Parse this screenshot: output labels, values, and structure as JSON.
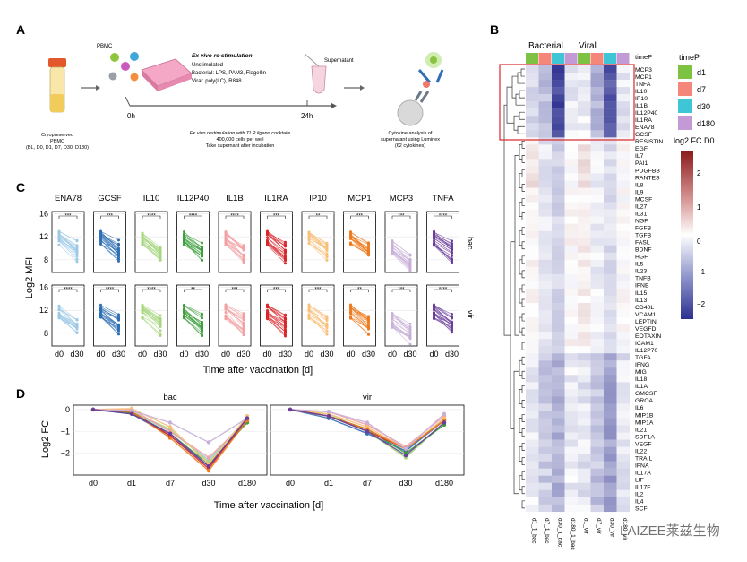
{
  "panels": {
    "A": {
      "label": "A",
      "pbmc": "PBMC",
      "exvivo_title": "Ex vivo re-stimulation",
      "unstimulated": "Unstimulated",
      "bacterial": "Bacterial: LPS, PAM3, Flagellin",
      "viral": "Viral: poly(I:C), R848",
      "supernatant": "Supernatant",
      "t0": "0h",
      "t24": "24h",
      "cryo": [
        "Cryopreserved",
        "PBMC",
        "(BL, D0, D1, D7, D30, D180)"
      ],
      "restim": [
        "Ex vivo restimulation with TLR ligand cocktails",
        "400,000 cells per well",
        "Take supernant after incubation"
      ],
      "cytokine": [
        "Cytokine analysis of",
        "supernatant using Luminex",
        "(62 cytokines)"
      ]
    },
    "B": {
      "label": "B",
      "group_bacterial": "Bacterial",
      "group_viral": "Viral",
      "timep_row": "timeP",
      "legend_title": "timeP",
      "legend_items": [
        {
          "name": "d1",
          "color": "#7dc242"
        },
        {
          "name": "d7",
          "color": "#f4877a"
        },
        {
          "name": "d30",
          "color": "#3ec6d6"
        },
        {
          "name": "d180",
          "color": "#c39ad6"
        }
      ],
      "scale_title": "log2 FC D0",
      "scale_ticks": [
        "2",
        "1",
        "0",
        "−1",
        "−2"
      ],
      "cytokines": [
        "MCP3",
        "MCP1",
        "TNFA",
        "IL10",
        "IP10",
        "IL1B",
        "IL12P40",
        "IL1RA",
        "ENA78",
        "GCSF",
        "RESISTIN",
        "EGF",
        "IL7",
        "PAI1",
        "PDGFBB",
        "RANTES",
        "IL8",
        "IL9",
        "MCSF",
        "IL27",
        "IL31",
        "NGF",
        "FGFB",
        "TGFB",
        "FASL",
        "BDNF",
        "HGF",
        "IL5",
        "IL23",
        "TNFB",
        "IFNB",
        "IL15",
        "IL13",
        "CD40L",
        "VCAM1",
        "LEPTIN",
        "VEGFD",
        "EOTAXIN",
        "ICAM1",
        "IL12P70",
        "TGFA",
        "IFNG",
        "MIG",
        "IL18",
        "IL1A",
        "GMCSF",
        "GROA",
        "IL6",
        "MIP1B",
        "MIP1A",
        "IL21",
        "SDF1A",
        "VEGF",
        "IL22",
        "TRAIL",
        "IFNA",
        "IL17A",
        "LIF",
        "IL17F",
        "IL2",
        "IL4",
        "SCF"
      ],
      "columns": [
        "d1_1_bac",
        "d7_1_bac",
        "d30_1_bac",
        "d180_1_bac",
        "d1_vir",
        "d7_vir",
        "d30_vir",
        "d180_vir"
      ]
    },
    "C": {
      "label": "C",
      "ylabel": "Log2 MFI",
      "xlabel": "Time after vaccination [d]",
      "row_bac": "bac",
      "row_vir": "vir",
      "xticks": [
        "d0",
        "d30"
      ],
      "yticks": [
        "16",
        "12",
        "8"
      ],
      "facets": [
        {
          "name": "ENA78",
          "color": "#9dc9e6",
          "sig_bac": "***",
          "sig_vir": "****"
        },
        {
          "name": "GCSF",
          "color": "#2f6fb4",
          "sig_bac": "***",
          "sig_vir": "****"
        },
        {
          "name": "IL10",
          "color": "#a6d67d",
          "sig_bac": "****",
          "sig_vir": "****"
        },
        {
          "name": "IL12P40",
          "color": "#3a9e3a",
          "sig_bac": "****",
          "sig_vir": "**"
        },
        {
          "name": "IL1B",
          "color": "#f2a0a3",
          "sig_bac": "****",
          "sig_vir": "***"
        },
        {
          "name": "IL1RA",
          "color": "#d9262a",
          "sig_bac": "***",
          "sig_vir": "***"
        },
        {
          "name": "IP10",
          "color": "#f8c07a",
          "sig_bac": "**",
          "sig_vir": "***"
        },
        {
          "name": "MCP1",
          "color": "#ef7b1f",
          "sig_bac": "***",
          "sig_vir": "**"
        },
        {
          "name": "MCP3",
          "color": "#c8b0d8",
          "sig_bac": "***",
          "sig_vir": "***"
        },
        {
          "name": "TNFA",
          "color": "#6a3d9a",
          "sig_bac": "****",
          "sig_vir": "****"
        }
      ]
    },
    "D": {
      "label": "D",
      "ylabel": "Log2 FC",
      "xlabel": "Time after vaccination [d]",
      "facet_bac": "bac",
      "facet_vir": "vir",
      "xticks": [
        "d0",
        "d1",
        "d7",
        "d30",
        "d180"
      ],
      "yticks": [
        "0",
        "−1",
        "−2"
      ]
    }
  },
  "watermark": "LAIZEE莱兹生物",
  "chart_data": [
    {
      "type": "line",
      "title": "bac",
      "xlabel": "Time after vaccination [d]",
      "ylabel": "Log2 FC",
      "categories": [
        "d0",
        "d1",
        "d7",
        "d30",
        "d180"
      ],
      "ylim": [
        -3,
        0.2
      ],
      "series": [
        {
          "name": "ENA78",
          "color": "#9dc9e6",
          "values": [
            0,
            -0.1,
            -1.0,
            -2.3,
            -0.4
          ]
        },
        {
          "name": "GCSF",
          "color": "#2f6fb4",
          "values": [
            0,
            -0.2,
            -1.2,
            -2.6,
            -0.5
          ]
        },
        {
          "name": "IL10",
          "color": "#a6d67d",
          "values": [
            0,
            -0.1,
            -0.9,
            -2.4,
            -0.4
          ]
        },
        {
          "name": "IL12P40",
          "color": "#3a9e3a",
          "values": [
            0,
            -0.15,
            -1.1,
            -2.5,
            -0.6
          ]
        },
        {
          "name": "IL1B",
          "color": "#f2a0a3",
          "values": [
            0,
            0.0,
            -1.0,
            -2.2,
            -0.5
          ]
        },
        {
          "name": "IL1RA",
          "color": "#d9262a",
          "values": [
            0,
            -0.1,
            -1.2,
            -2.7,
            -0.4
          ]
        },
        {
          "name": "IP10",
          "color": "#f8c07a",
          "values": [
            0,
            0.05,
            -0.8,
            -2.5,
            -0.3
          ]
        },
        {
          "name": "MCP1",
          "color": "#ef7b1f",
          "values": [
            0,
            -0.1,
            -1.3,
            -2.8,
            -0.5
          ]
        },
        {
          "name": "MCP3",
          "color": "#c8b0d8",
          "values": [
            0,
            -0.05,
            -0.6,
            -1.5,
            -0.4
          ]
        },
        {
          "name": "TNFA",
          "color": "#6a3d9a",
          "values": [
            0,
            -0.2,
            -1.1,
            -2.6,
            -0.4
          ]
        }
      ]
    },
    {
      "type": "line",
      "title": "vir",
      "xlabel": "Time after vaccination [d]",
      "ylabel": "Log2 FC",
      "categories": [
        "d0",
        "d1",
        "d7",
        "d30",
        "d180"
      ],
      "ylim": [
        -3,
        0.2
      ],
      "series": [
        {
          "name": "ENA78",
          "color": "#9dc9e6",
          "values": [
            0,
            -0.3,
            -0.9,
            -1.9,
            -0.4
          ]
        },
        {
          "name": "GCSF",
          "color": "#2f6fb4",
          "values": [
            0,
            -0.4,
            -1.1,
            -1.9,
            -0.5
          ]
        },
        {
          "name": "IL10",
          "color": "#a6d67d",
          "values": [
            0,
            -0.2,
            -1.0,
            -2.2,
            -0.6
          ]
        },
        {
          "name": "IL12P40",
          "color": "#3a9e3a",
          "values": [
            0,
            -0.3,
            -0.9,
            -2.0,
            -0.7
          ]
        },
        {
          "name": "IL1B",
          "color": "#f2a0a3",
          "values": [
            0,
            -0.1,
            -0.7,
            -1.7,
            -0.3
          ]
        },
        {
          "name": "IL1RA",
          "color": "#d9262a",
          "values": [
            0,
            -0.3,
            -1.0,
            -1.8,
            -0.5
          ]
        },
        {
          "name": "IP10",
          "color": "#f8c07a",
          "values": [
            0,
            -0.2,
            -0.8,
            -1.8,
            -0.4
          ]
        },
        {
          "name": "MCP1",
          "color": "#ef7b1f",
          "values": [
            0,
            -0.3,
            -0.9,
            -1.8,
            -0.5
          ]
        },
        {
          "name": "MCP3",
          "color": "#c8b0d8",
          "values": [
            0,
            -0.1,
            -0.6,
            -1.8,
            -0.2
          ]
        },
        {
          "name": "TNFA",
          "color": "#6a3d9a",
          "values": [
            0,
            -0.3,
            -1.0,
            -2.1,
            -0.6
          ]
        }
      ]
    }
  ]
}
